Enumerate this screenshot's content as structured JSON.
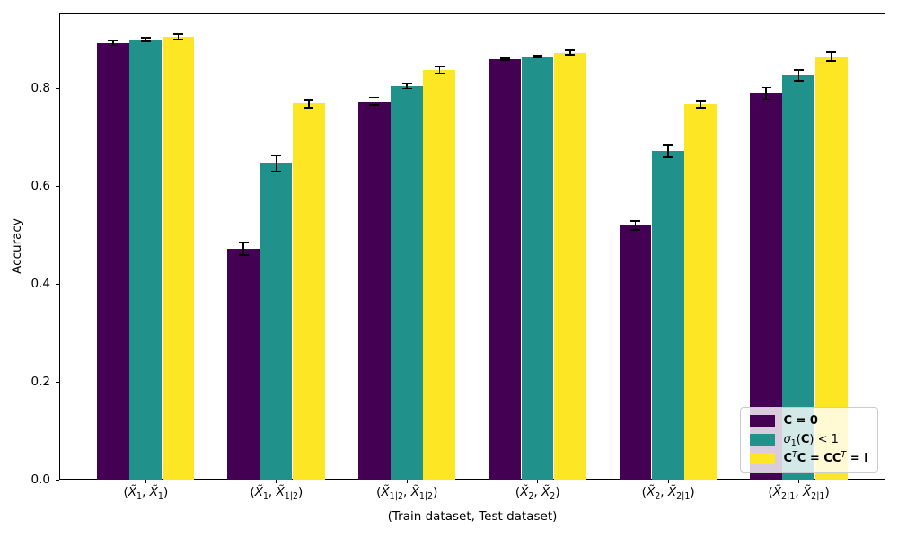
{
  "chart_data": {
    "type": "bar",
    "title": "",
    "xlabel": "(Train dataset, Test dataset)",
    "ylabel": "Accuracy",
    "ylim": [
      0,
      0.9523
    ],
    "yticks": [
      "0.0",
      "0.2",
      "0.4",
      "0.6",
      "0.8"
    ],
    "grid": false,
    "legend_position": "lower right",
    "categories": [
      "(X̃1, X̃1)",
      "(X̃1, X̃1|2)",
      "(X̃1|2, X̃1|2)",
      "(X̃2, X̃2)",
      "(X̃2, X̃2|1)",
      "(X̃2|1, X̃2|1)"
    ],
    "category_template": {
      "open": "(",
      "x": "X̃",
      "sep": ", ",
      "close": ")"
    },
    "category_subscripts": [
      [
        "1",
        "1"
      ],
      [
        "1",
        "1|2"
      ],
      [
        "1|2",
        "1|2"
      ],
      [
        "2",
        "2"
      ],
      [
        "2",
        "2|1"
      ],
      [
        "2|1",
        "2|1"
      ]
    ],
    "series": [
      {
        "name": "C = 0",
        "color": "#440154",
        "values": [
          0.892,
          0.472,
          0.773,
          0.859,
          0.519,
          0.789
        ],
        "errors": [
          0.005,
          0.013,
          0.008,
          0.002,
          0.009,
          0.012
        ],
        "label_segments": [
          {
            "t": "C = 0",
            "b": 1
          }
        ]
      },
      {
        "name": "σ₁(C) < 1",
        "color": "#21918c",
        "values": [
          0.899,
          0.646,
          0.804,
          0.864,
          0.672,
          0.826
        ],
        "errors": [
          0.004,
          0.017,
          0.005,
          0.002,
          0.013,
          0.011
        ],
        "label_segments": [
          {
            "t": "σ",
            "i": 1
          },
          {
            "t": "1",
            "sub": 1
          },
          {
            "t": "("
          },
          {
            "t": "C",
            "b": 1
          },
          {
            "t": ") < 1"
          }
        ]
      },
      {
        "name": "CᵀC = CCᵀ = I",
        "color": "#fde725",
        "values": [
          0.905,
          0.768,
          0.837,
          0.872,
          0.767,
          0.864
        ],
        "errors": [
          0.005,
          0.008,
          0.007,
          0.005,
          0.007,
          0.009
        ],
        "label_segments": [
          {
            "t": "C",
            "b": 1
          },
          {
            "t": "T",
            "sup": 1
          },
          {
            "t": "C",
            "b": 1
          },
          {
            "t": " = ",
            "b": 1
          },
          {
            "t": "CC",
            "b": 1
          },
          {
            "t": "T",
            "sup": 1
          },
          {
            "t": " = ",
            "b": 1
          },
          {
            "t": "I",
            "b": 1
          }
        ]
      }
    ],
    "bar_width_units": 0.25,
    "x_units_total": 6.325,
    "x_units_offset": 0.6625
  }
}
